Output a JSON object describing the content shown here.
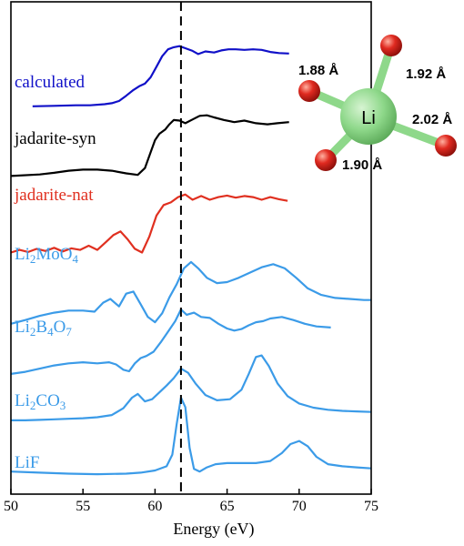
{
  "chart_data": {
    "type": "line",
    "xlabel": "Energy (eV)",
    "ylabel": "",
    "xlim": [
      50,
      75
    ],
    "xticks": [
      50,
      55,
      60,
      65,
      70,
      75
    ],
    "xtick_labels": [
      "50",
      "55",
      "60",
      "65",
      "70",
      "75"
    ],
    "yticks": "none",
    "grid": false,
    "reference_line_x": 61.8,
    "colors": {
      "calculated": "#1010c8",
      "syn": "#000000",
      "nat": "#e03020",
      "lithium": "#3b9be8"
    },
    "series": [
      {
        "name": "calculated",
        "label_parts": [
          {
            "t": "calculated",
            "sub": false
          }
        ],
        "color": "#1010c8",
        "offset": 7.0,
        "x": [
          51.5,
          53,
          54.5,
          55.5,
          56.5,
          57,
          57.5,
          58,
          58.5,
          58.9,
          59.3,
          59.7,
          60.1,
          60.5,
          60.9,
          61.3,
          61.7,
          62.1,
          62.6,
          63,
          63.5,
          64.1,
          64.6,
          65.1,
          65.6,
          66.2,
          66.8,
          67.4,
          68,
          68.6,
          69.3
        ],
        "y": [
          0.02,
          0.03,
          0.04,
          0.04,
          0.06,
          0.08,
          0.12,
          0.22,
          0.33,
          0.4,
          0.45,
          0.57,
          0.77,
          0.97,
          1.1,
          1.14,
          1.16,
          1.12,
          1.07,
          1.01,
          1.06,
          1.04,
          1.08,
          1.1,
          1.1,
          1.09,
          1.1,
          1.09,
          1.05,
          1.03,
          1.02
        ]
      },
      {
        "name": "jadarite-syn",
        "label_parts": [
          {
            "t": "jadarite-syn",
            "sub": false
          }
        ],
        "color": "#000000",
        "offset": 5.7,
        "x": [
          50,
          52,
          53,
          54,
          55,
          56,
          57,
          58,
          58.8,
          59.3,
          59.7,
          60,
          60.3,
          60.7,
          61,
          61.3,
          61.7,
          62.1,
          62.6,
          63.1,
          63.6,
          64.1,
          64.8,
          65.5,
          66.2,
          67,
          67.8,
          68.5,
          69.3
        ],
        "y": [
          0.0,
          0.03,
          0.06,
          0.1,
          0.12,
          0.12,
          0.1,
          0.05,
          0.02,
          0.15,
          0.45,
          0.68,
          0.8,
          0.88,
          0.98,
          1.06,
          1.05,
          1.0,
          1.07,
          1.14,
          1.15,
          1.11,
          1.06,
          1.02,
          1.05,
          1.0,
          0.98,
          1.0,
          1.02
        ]
      },
      {
        "name": "jadarite-nat",
        "label_parts": [
          {
            "t": "jadarite-nat",
            "sub": false
          }
        ],
        "color": "#e03020",
        "offset": 4.2,
        "x": [
          50,
          50.6,
          51.2,
          51.8,
          52.4,
          53,
          53.6,
          54.2,
          54.8,
          55.4,
          56,
          56.6,
          57.1,
          57.6,
          58.1,
          58.6,
          59.1,
          59.6,
          60.1,
          60.6,
          61.1,
          61.6,
          62.1,
          62.6,
          63.2,
          63.8,
          64.4,
          65,
          65.6,
          66.2,
          66.8,
          67.4,
          68,
          68.6,
          69.2
        ],
        "y": [
          0.05,
          0.1,
          0.06,
          0.12,
          0.08,
          0.14,
          0.07,
          0.13,
          0.1,
          0.18,
          0.1,
          0.25,
          0.38,
          0.45,
          0.3,
          0.12,
          0.05,
          0.35,
          0.75,
          0.95,
          1.0,
          1.1,
          1.15,
          1.05,
          1.12,
          1.05,
          1.1,
          1.13,
          1.09,
          1.12,
          1.1,
          1.05,
          1.1,
          1.06,
          1.03
        ]
      },
      {
        "name": "Li2MoO4",
        "label_parts": [
          {
            "t": "Li",
            "sub": false
          },
          {
            "t": "2",
            "sub": true
          },
          {
            "t": "MoO",
            "sub": false
          },
          {
            "t": "4",
            "sub": true
          }
        ],
        "color": "#3b9be8",
        "offset": 2.85,
        "x": [
          50,
          51,
          52,
          53,
          54,
          55,
          55.8,
          56.4,
          56.9,
          57.5,
          58,
          58.5,
          59,
          59.5,
          60,
          60.5,
          61,
          61.5,
          62,
          62.5,
          63,
          63.6,
          64.3,
          65,
          65.8,
          66.6,
          67.4,
          68.2,
          69,
          69.8,
          70.6,
          71.5,
          72.5,
          73.5,
          74.5,
          75
        ],
        "y": [
          0.05,
          0.12,
          0.2,
          0.26,
          0.3,
          0.3,
          0.28,
          0.45,
          0.52,
          0.38,
          0.62,
          0.66,
          0.42,
          0.18,
          0.08,
          0.25,
          0.55,
          0.8,
          1.1,
          1.22,
          1.1,
          0.92,
          0.82,
          0.84,
          0.92,
          1.02,
          1.12,
          1.18,
          1.1,
          0.92,
          0.72,
          0.6,
          0.54,
          0.52,
          0.5,
          0.5
        ]
      },
      {
        "name": "Li2B4O7",
        "label_parts": [
          {
            "t": "Li",
            "sub": false
          },
          {
            "t": "2",
            "sub": true
          },
          {
            "t": "B",
            "sub": false
          },
          {
            "t": "4",
            "sub": true
          },
          {
            "t": "O",
            "sub": false
          },
          {
            "t": "7",
            "sub": true
          }
        ],
        "color": "#3b9be8",
        "offset": 1.95,
        "x": [
          50,
          51,
          52,
          53,
          54,
          55,
          56,
          56.8,
          57.3,
          57.8,
          58.2,
          58.6,
          59,
          59.4,
          59.9,
          60.4,
          60.9,
          61.4,
          61.8,
          62.2,
          62.7,
          63.2,
          63.8,
          64.4,
          65,
          65.5,
          66,
          66.5,
          67,
          67.5,
          68,
          68.8,
          69.6,
          70.4,
          71.2,
          72.2
        ],
        "y": [
          0.0,
          0.04,
          0.1,
          0.16,
          0.2,
          0.22,
          0.2,
          0.22,
          0.18,
          0.08,
          0.05,
          0.2,
          0.3,
          0.34,
          0.42,
          0.6,
          0.8,
          1.0,
          1.22,
          1.12,
          1.16,
          1.08,
          1.06,
          0.95,
          0.86,
          0.82,
          0.85,
          0.92,
          0.98,
          1.0,
          1.05,
          1.08,
          1.02,
          0.95,
          0.9,
          0.88
        ]
      },
      {
        "name": "Li2CO3",
        "label_parts": [
          {
            "t": "Li",
            "sub": false
          },
          {
            "t": "2",
            "sub": true
          },
          {
            "t": "CO",
            "sub": false
          },
          {
            "t": "3",
            "sub": true
          }
        ],
        "color": "#3b9be8",
        "offset": 1.05,
        "x": [
          50,
          51,
          52,
          53,
          54,
          55,
          56,
          57,
          57.8,
          58.4,
          58.8,
          59.3,
          59.8,
          60.3,
          60.8,
          61.3,
          61.8,
          62.3,
          62.8,
          63.5,
          64.3,
          65.2,
          66,
          66.5,
          67,
          67.4,
          67.9,
          68.5,
          69.2,
          70,
          71,
          72,
          73,
          74,
          75
        ],
        "y": [
          0.02,
          0.02,
          0.03,
          0.04,
          0.05,
          0.06,
          0.08,
          0.12,
          0.25,
          0.45,
          0.52,
          0.38,
          0.42,
          0.55,
          0.68,
          0.82,
          1.0,
          0.92,
          0.72,
          0.5,
          0.4,
          0.42,
          0.6,
          0.9,
          1.22,
          1.25,
          1.05,
          0.72,
          0.48,
          0.34,
          0.26,
          0.22,
          0.2,
          0.19,
          0.18
        ]
      },
      {
        "name": "LiF",
        "label_parts": [
          {
            "t": "LiF",
            "sub": false
          }
        ],
        "color": "#3b9be8",
        "offset": 0.0,
        "x": [
          50,
          52,
          54,
          56,
          58,
          59,
          60,
          60.8,
          61.2,
          61.5,
          61.8,
          62.1,
          62.4,
          62.7,
          63.1,
          63.6,
          64.2,
          65,
          66,
          67,
          68,
          68.8,
          69.4,
          70,
          70.6,
          71.2,
          72,
          73,
          74,
          75
        ],
        "y": [
          0.1,
          0.08,
          0.06,
          0.05,
          0.06,
          0.08,
          0.12,
          0.2,
          0.42,
          1.0,
          1.5,
          1.32,
          0.55,
          0.15,
          0.1,
          0.18,
          0.24,
          0.26,
          0.26,
          0.26,
          0.3,
          0.45,
          0.62,
          0.68,
          0.58,
          0.38,
          0.24,
          0.2,
          0.18,
          0.16
        ]
      }
    ]
  },
  "structure_inset": {
    "center_label": "Li",
    "bonds": [
      {
        "direction": "upper-left",
        "label": "1.88 Å"
      },
      {
        "direction": "upper-right",
        "label": "1.92 Å"
      },
      {
        "direction": "lower-right",
        "label": "2.02 Å"
      },
      {
        "direction": "lower-left",
        "label": "1.90 Å"
      }
    ],
    "colors": {
      "li_atom": "#8ed88a",
      "o_atom": "#d82020",
      "bond": "#8ed88a"
    }
  }
}
